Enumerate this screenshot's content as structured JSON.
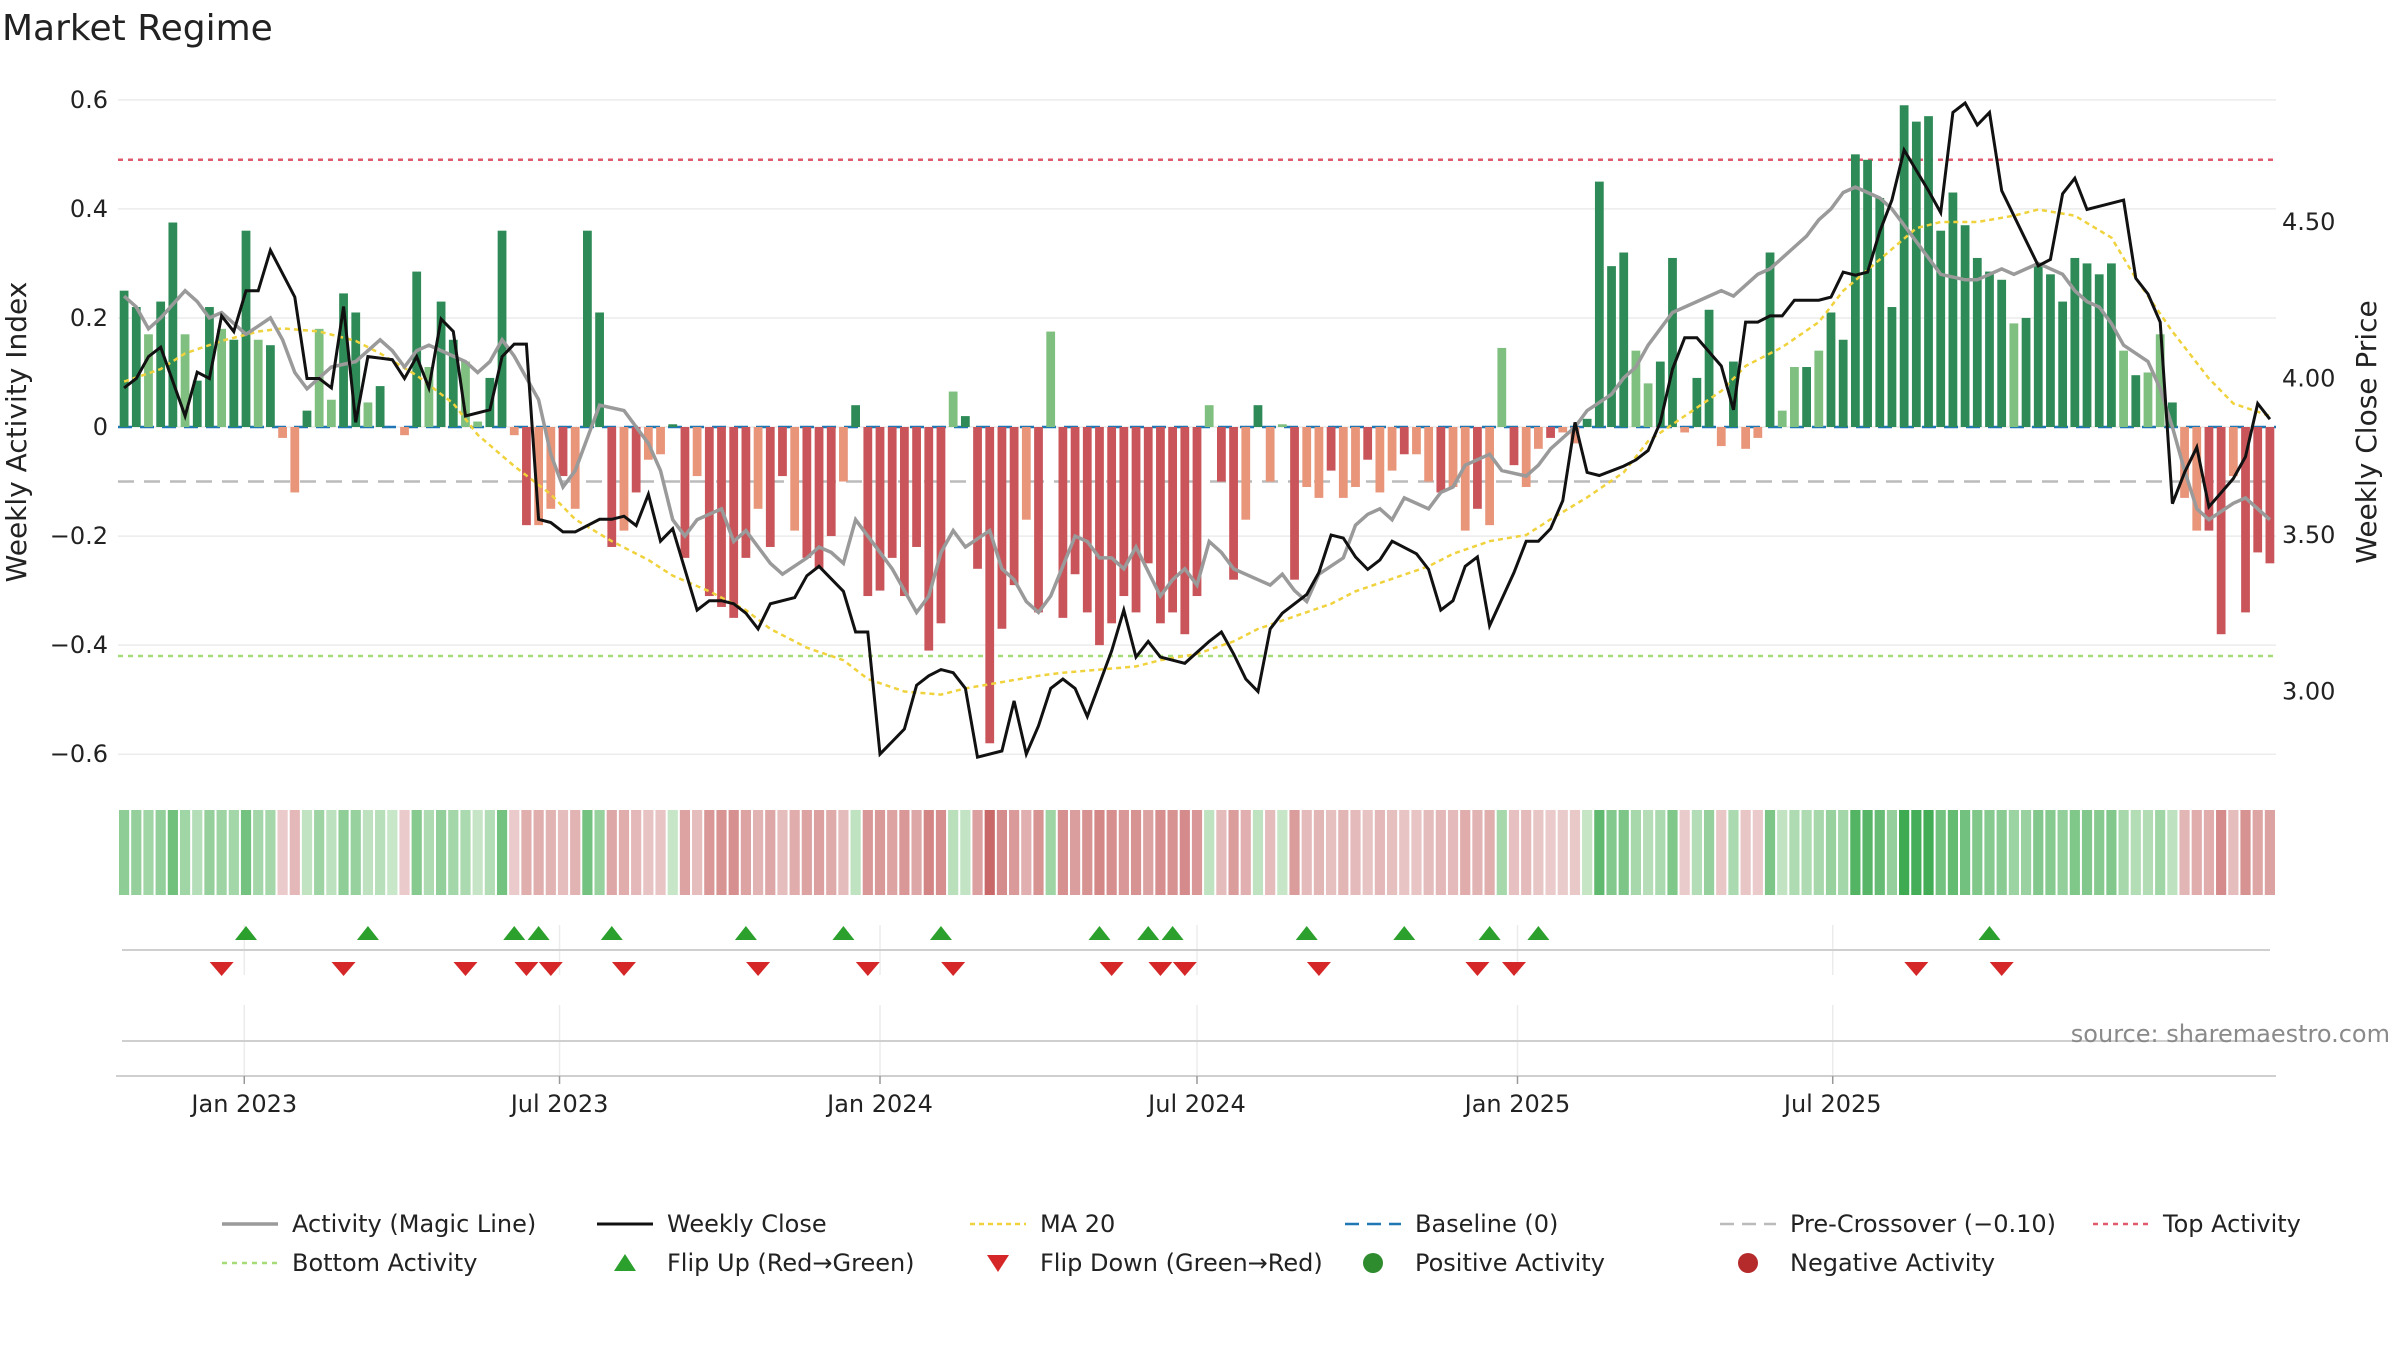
{
  "title": "Market Regime",
  "source": "source: sharemaestro.com",
  "colors": {
    "pos_dark": "#2e8b57",
    "pos_light": "#7fbf7f",
    "neg_dark": "#c9555a",
    "neg_light": "#e8957a",
    "close": "#111111",
    "magic": "#9a9a9a",
    "ma20": "#f0d23c",
    "baseline": "#1f77b4",
    "pre": "#bbbbbb",
    "top": "#e05a6e",
    "bottom": "#a6dc78",
    "flip_up": "#2ca02c",
    "flip_down": "#d62728"
  },
  "chart_data": {
    "type": "bar",
    "title": "Market Regime",
    "ylabel_left": "Weekly Activity Index",
    "ylabel_right": "Weekly Close Price",
    "ylim_left": [
      -0.64,
      0.64
    ],
    "ylim_right": [
      2.73,
      4.96
    ],
    "left_ticks": [
      {
        "v": 0.6,
        "label": "0.6"
      },
      {
        "v": 0.4,
        "label": "0.4"
      },
      {
        "v": 0.2,
        "label": "0.2"
      },
      {
        "v": 0,
        "label": "0"
      },
      {
        "v": -0.2,
        "label": "−0.2"
      },
      {
        "v": -0.4,
        "label": "−0.4"
      },
      {
        "v": -0.6,
        "label": "−0.6"
      }
    ],
    "right_ticks": [
      {
        "v": 4.5,
        "label": "4.50"
      },
      {
        "v": 4.0,
        "label": "4.00"
      },
      {
        "v": 3.5,
        "label": "3.50"
      },
      {
        "v": 3.0,
        "label": "3.00"
      }
    ],
    "x_start": "2022-10-24",
    "x_ticks": [
      {
        "date": "2023-01-01",
        "label": "Jan 2023"
      },
      {
        "date": "2023-07-01",
        "label": "Jul 2023"
      },
      {
        "date": "2024-01-01",
        "label": "Jan 2024"
      },
      {
        "date": "2024-07-01",
        "label": "Jul 2024"
      },
      {
        "date": "2025-01-01",
        "label": "Jan 2025"
      },
      {
        "date": "2025-07-01",
        "label": "Jul 2025"
      }
    ],
    "reference_lines": {
      "top_activity": 0.49,
      "bottom_activity": -0.42,
      "pre_crossover": -0.1,
      "baseline": 0
    },
    "activity": [
      0.25,
      0.22,
      0.17,
      0.23,
      0.375,
      0.17,
      0.085,
      0.22,
      0.18,
      0.16,
      0.36,
      0.16,
      0.15,
      -0.02,
      -0.12,
      0.03,
      0.18,
      0.05,
      0.245,
      0.21,
      0.045,
      0.075,
      0.0,
      -0.015,
      0.285,
      0.11,
      0.23,
      0.16,
      0.12,
      0.01,
      0.09,
      0.36,
      -0.015,
      -0.18,
      -0.18,
      -0.15,
      -0.09,
      -0.15,
      0.36,
      0.21,
      -0.22,
      -0.19,
      -0.12,
      -0.06,
      -0.05,
      0.005,
      -0.24,
      -0.09,
      -0.31,
      -0.33,
      -0.35,
      -0.24,
      -0.15,
      -0.22,
      -0.09,
      -0.19,
      -0.24,
      -0.26,
      -0.2,
      -0.1,
      0.04,
      -0.31,
      -0.3,
      -0.24,
      -0.31,
      -0.22,
      -0.41,
      -0.36,
      0.065,
      0.02,
      -0.26,
      -0.58,
      -0.37,
      -0.29,
      -0.17,
      -0.34,
      0.175,
      -0.35,
      -0.27,
      -0.34,
      -0.4,
      -0.36,
      -0.31,
      -0.34,
      -0.25,
      -0.36,
      -0.34,
      -0.38,
      -0.31,
      0.04,
      -0.1,
      -0.28,
      -0.17,
      0.04,
      -0.1,
      0.005,
      -0.28,
      -0.11,
      -0.13,
      -0.08,
      -0.13,
      -0.11,
      -0.06,
      -0.12,
      -0.08,
      -0.05,
      -0.05,
      -0.1,
      -0.12,
      -0.11,
      -0.19,
      -0.15,
      -0.18,
      0.145,
      -0.07,
      -0.11,
      -0.04,
      -0.02,
      -0.01,
      -0.03,
      0.015,
      0.45,
      0.295,
      0.32,
      0.14,
      0.08,
      0.12,
      0.31,
      -0.01,
      0.09,
      0.215,
      -0.035,
      0.12,
      -0.04,
      -0.02,
      0.32,
      0.03,
      0.11,
      0.11,
      0.14,
      0.21,
      0.16,
      0.5,
      0.49,
      0.42,
      0.22,
      0.59,
      0.56,
      0.57,
      0.36,
      0.43,
      0.37,
      0.31,
      0.285,
      0.27,
      0.19,
      0.2,
      0.3,
      0.28,
      0.23,
      0.31,
      0.3,
      0.28,
      0.3,
      0.14,
      0.095,
      0.1,
      0.17,
      0.045,
      -0.13,
      -0.19,
      -0.19,
      -0.38,
      -0.09,
      -0.34,
      -0.23,
      -0.25
    ],
    "close": [
      3.97,
      4.0,
      4.07,
      4.1,
      3.88,
      4.02,
      4.0,
      4.2,
      4.15,
      4.28,
      4.28,
      4.41,
      4.26,
      4.0,
      4.0,
      3.97,
      4.23,
      3.86,
      4.07,
      4.06,
      4.0,
      4.07,
      3.97,
      4.19,
      4.15,
      3.88,
      3.9,
      4.07,
      4.11,
      4.11,
      3.55,
      3.54,
      3.51,
      3.51,
      3.55,
      3.55,
      3.56,
      3.53,
      3.63,
      3.48,
      3.52,
      3.26,
      3.29,
      3.29,
      3.28,
      3.25,
      3.2,
      3.28,
      3.3,
      3.37,
      3.4,
      3.36,
      3.32,
      3.19,
      3.19,
      2.8,
      2.88,
      3.02,
      3.05,
      3.07,
      3.06,
      3.01,
      2.79,
      2.81,
      2.97,
      2.8,
      2.89,
      3.01,
      3.04,
      3.01,
      2.92,
      3.13,
      3.26,
      3.11,
      3.16,
      3.11,
      3.1,
      3.09,
      3.16,
      3.19,
      3.12,
      3.04,
      3.0,
      3.2,
      3.25,
      3.31,
      3.38,
      3.5,
      3.49,
      3.43,
      3.39,
      3.42,
      3.48,
      3.44,
      3.39,
      3.26,
      3.29,
      3.4,
      3.43,
      3.21,
      3.38,
      3.48,
      3.48,
      3.52,
      3.61,
      3.86,
      3.7,
      3.69,
      3.72,
      3.74,
      3.77,
      3.86,
      4.03,
      4.13,
      4.13,
      4.04,
      3.9,
      4.18,
      4.18,
      4.2,
      4.2,
      4.25,
      4.25,
      4.26,
      4.34,
      4.33,
      4.34,
      4.47,
      4.57,
      4.73,
      4.6,
      4.53,
      4.85,
      4.88,
      4.81,
      4.85,
      4.6,
      4.44,
      4.36,
      4.38,
      4.59,
      4.64,
      4.54,
      4.55,
      4.57,
      4.32,
      4.27,
      4.18,
      3.6,
      3.7,
      3.78,
      3.59,
      3.68,
      3.75,
      3.92,
      3.87
    ],
    "magic": [
      0.24,
      0.22,
      0.18,
      0.2,
      0.25,
      0.23,
      0.2,
      0.21,
      0.19,
      0.17,
      0.2,
      0.16,
      0.1,
      0.07,
      0.09,
      0.11,
      0.12,
      0.14,
      0.16,
      0.14,
      0.11,
      0.14,
      0.15,
      0.13,
      0.12,
      0.1,
      0.12,
      0.16,
      0.13,
      0.05,
      -0.05,
      -0.11,
      -0.08,
      -0.02,
      0.04,
      0.03,
      0.0,
      -0.03,
      -0.08,
      -0.17,
      -0.2,
      -0.17,
      -0.15,
      -0.21,
      -0.19,
      -0.22,
      -0.25,
      -0.27,
      -0.24,
      -0.22,
      -0.23,
      -0.25,
      -0.17,
      -0.2,
      -0.26,
      -0.3,
      -0.34,
      -0.31,
      -0.23,
      -0.19,
      -0.22,
      -0.19,
      -0.26,
      -0.28,
      -0.32,
      -0.34,
      -0.31,
      -0.2,
      -0.21,
      -0.24,
      -0.24,
      -0.26,
      -0.22,
      -0.31,
      -0.28,
      -0.26,
      -0.29,
      -0.21,
      -0.23,
      -0.26,
      -0.28,
      -0.29,
      -0.27,
      -0.3,
      -0.32,
      -0.27,
      -0.24,
      -0.18,
      -0.16,
      -0.15,
      -0.17,
      -0.13,
      -0.15,
      -0.12,
      -0.11,
      -0.07,
      -0.06,
      -0.05,
      -0.08,
      -0.09,
      -0.07,
      -0.04,
      -0.02,
      0.0,
      0.03,
      0.06,
      0.09,
      0.11,
      0.15,
      0.18,
      0.21,
      0.23,
      0.24,
      0.25,
      0.24,
      0.26,
      0.28,
      0.29,
      0.33,
      0.35,
      0.38,
      0.4,
      0.43,
      0.44,
      0.42,
      0.4,
      0.37,
      0.34,
      0.31,
      0.28,
      0.27,
      0.27,
      0.28,
      0.29,
      0.28,
      0.29,
      0.3,
      0.28,
      0.25,
      0.23,
      0.22,
      0.19,
      0.15,
      0.12,
      0.07,
      0.0,
      -0.08,
      -0.15,
      -0.17,
      -0.14,
      -0.13,
      -0.15,
      -0.17
    ],
    "ma20": [
      3.99,
      4.03,
      4.08,
      4.12,
      4.15,
      4.16,
      4.15,
      4.12,
      4.08,
      4.01,
      3.92,
      3.82,
      3.72,
      3.63,
      3.55,
      3.48,
      3.42,
      3.37,
      3.32,
      3.26,
      3.2,
      3.14,
      3.1,
      3.04,
      3.0,
      2.99,
      3.01,
      3.03,
      3.05,
      3.06,
      3.07,
      3.08,
      3.1,
      3.12,
      3.16,
      3.2,
      3.24,
      3.28,
      3.32,
      3.36,
      3.4,
      3.44,
      3.48,
      3.5,
      3.55,
      3.62,
      3.7,
      3.8,
      3.88,
      3.96,
      4.04,
      4.1,
      4.18,
      4.28,
      4.38,
      4.48,
      4.5,
      4.5,
      4.52,
      4.54,
      4.52,
      4.45,
      4.32,
      4.15,
      4.0,
      3.92,
      3.88
    ],
    "flips_up": [
      "2023-01-02",
      "2023-03-13",
      "2023-06-05",
      "2023-06-19",
      "2023-07-31",
      "2023-10-16",
      "2023-12-11",
      "2024-02-05",
      "2024-05-06",
      "2024-06-03",
      "2024-06-17",
      "2024-09-02",
      "2024-10-28",
      "2024-12-16",
      "2025-01-13",
      "2025-09-29"
    ],
    "flips_down": [
      "2022-12-19",
      "2023-02-27",
      "2023-05-08",
      "2023-06-12",
      "2023-06-26",
      "2023-08-07",
      "2023-10-23",
      "2023-12-25",
      "2024-02-12",
      "2024-05-13",
      "2024-06-10",
      "2024-06-24",
      "2024-09-09",
      "2024-12-09",
      "2024-12-30",
      "2025-08-18",
      "2025-10-06"
    ],
    "legend": [
      {
        "label": "Activity (Magic Line)",
        "kind": "line-magic"
      },
      {
        "label": "Weekly Close",
        "kind": "line-close"
      },
      {
        "label": "MA 20",
        "kind": "line-ma"
      },
      {
        "label": "Baseline (0)",
        "kind": "line-baseline"
      },
      {
        "label": "Pre-Crossover (−0.10)",
        "kind": "line-pre"
      },
      {
        "label": "Top Activity",
        "kind": "line-top"
      },
      {
        "label": "Bottom Activity",
        "kind": "line-bottom"
      },
      {
        "label": "Flip Up (Red→Green)",
        "kind": "tri-up"
      },
      {
        "label": "Flip Down (Green→Red)",
        "kind": "tri-down"
      },
      {
        "label": "Positive Activity",
        "kind": "dot-pos"
      },
      {
        "label": "Negative Activity",
        "kind": "dot-neg"
      }
    ]
  }
}
